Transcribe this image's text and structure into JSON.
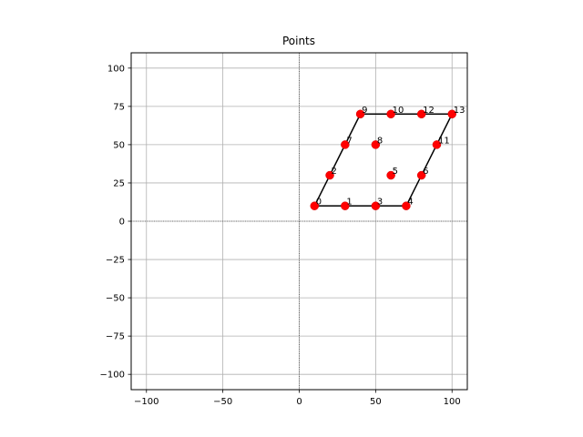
{
  "chart_data": {
    "type": "scatter",
    "title": "Points",
    "xlabel": "",
    "ylabel": "",
    "xlim": [
      -110,
      110
    ],
    "ylim": [
      -110,
      110
    ],
    "xticks": [
      -100,
      -50,
      0,
      50,
      100
    ],
    "yticks": [
      -100,
      -75,
      -50,
      -25,
      0,
      25,
      50,
      75,
      100
    ],
    "xtick_labels": [
      "−100",
      "−50",
      "0",
      "50",
      "100"
    ],
    "ytick_labels": [
      "−100",
      "−75",
      "−50",
      "−25",
      "0",
      "25",
      "50",
      "75",
      "100"
    ],
    "grid": true,
    "point_color": "#ff0000",
    "line_color": "#000000",
    "points": [
      {
        "label": "0",
        "x": 10,
        "y": 10
      },
      {
        "label": "1",
        "x": 30,
        "y": 10
      },
      {
        "label": "2",
        "x": 20,
        "y": 30
      },
      {
        "label": "3",
        "x": 50,
        "y": 10
      },
      {
        "label": "4",
        "x": 70,
        "y": 10
      },
      {
        "label": "5",
        "x": 60,
        "y": 30
      },
      {
        "label": "6",
        "x": 80,
        "y": 30
      },
      {
        "label": "7",
        "x": 30,
        "y": 50
      },
      {
        "label": "8",
        "x": 50,
        "y": 50
      },
      {
        "label": "9",
        "x": 40,
        "y": 70
      },
      {
        "label": "10",
        "x": 60,
        "y": 70
      },
      {
        "label": "11",
        "x": 90,
        "y": 50
      },
      {
        "label": "12",
        "x": 80,
        "y": 70
      },
      {
        "label": "13",
        "x": 100,
        "y": 70
      }
    ],
    "outline": [
      [
        10,
        10
      ],
      [
        70,
        10
      ],
      [
        100,
        70
      ],
      [
        40,
        70
      ],
      [
        10,
        10
      ]
    ]
  }
}
